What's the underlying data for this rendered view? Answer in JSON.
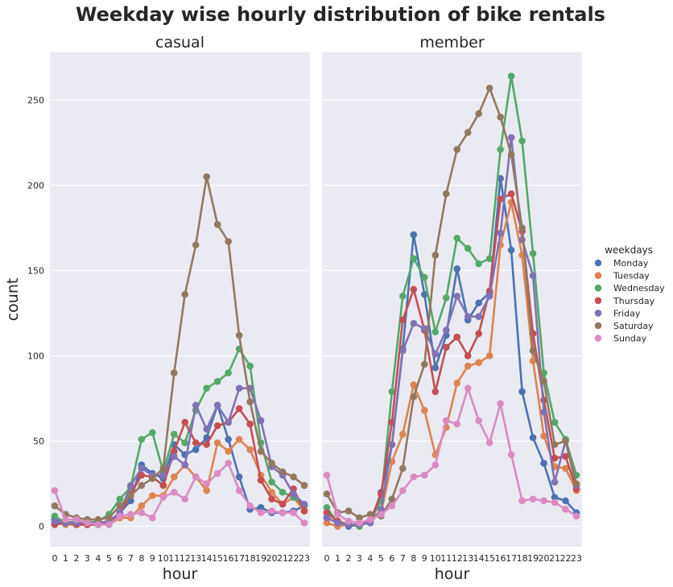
{
  "figure": {
    "title": "Weekday wise hourly distribution of bike rentals",
    "legend_title": "weekdays",
    "legend_position": "right",
    "ylabel": "count",
    "grid": true,
    "background": "#eaeaf2"
  },
  "chart_data": [
    {
      "type": "line",
      "title": "casual",
      "xlabel": "hour",
      "ylabel": "count",
      "x": [
        0,
        1,
        2,
        3,
        4,
        5,
        6,
        7,
        8,
        9,
        10,
        11,
        12,
        13,
        14,
        15,
        16,
        17,
        18,
        19,
        20,
        21,
        22,
        23
      ],
      "ylim": [
        -12,
        278
      ],
      "yticks": [
        0,
        50,
        100,
        150,
        200,
        250
      ],
      "series": [
        {
          "name": "Monday",
          "color": "#4c72b0",
          "values": [
            4,
            2,
            2,
            1,
            1,
            2,
            8,
            15,
            36,
            31,
            28,
            48,
            42,
            45,
            52,
            71,
            51,
            29,
            10,
            11,
            8,
            8,
            9,
            12
          ]
        },
        {
          "name": "Tuesday",
          "color": "#dd8452",
          "values": [
            2,
            1,
            1,
            1,
            1,
            1,
            5,
            5,
            12,
            18,
            18,
            29,
            36,
            29,
            21,
            49,
            44,
            51,
            45,
            30,
            20,
            13,
            17,
            9
          ]
        },
        {
          "name": "Wednesday",
          "color": "#55a868",
          "values": [
            6,
            2,
            3,
            2,
            3,
            7,
            16,
            23,
            51,
            55,
            32,
            54,
            49,
            68,
            81,
            85,
            90,
            104,
            94,
            49,
            26,
            20,
            17,
            12
          ]
        },
        {
          "name": "Thursday",
          "color": "#c44e52",
          "values": [
            1,
            2,
            1,
            1,
            1,
            2,
            7,
            19,
            30,
            29,
            24,
            44,
            61,
            49,
            48,
            59,
            61,
            69,
            60,
            27,
            16,
            13,
            22,
            9
          ]
        },
        {
          "name": "Friday",
          "color": "#8172b3",
          "values": [
            3,
            2,
            2,
            2,
            2,
            3,
            8,
            24,
            34,
            30,
            30,
            41,
            36,
            71,
            57,
            71,
            61,
            81,
            81,
            62,
            35,
            30,
            19,
            13
          ]
        },
        {
          "name": "Saturday",
          "color": "#937860",
          "values": [
            12,
            7,
            5,
            4,
            4,
            5,
            12,
            18,
            24,
            28,
            34,
            90,
            136,
            165,
            205,
            177,
            167,
            112,
            73,
            44,
            37,
            32,
            29,
            24
          ]
        },
        {
          "name": "Sunday",
          "color": "#da8bc3",
          "values": [
            21,
            4,
            4,
            2,
            1,
            1,
            6,
            7,
            8,
            5,
            17,
            20,
            16,
            29,
            25,
            31,
            37,
            21,
            12,
            8,
            9,
            8,
            8,
            2
          ]
        }
      ]
    },
    {
      "type": "line",
      "title": "member",
      "xlabel": "hour",
      "ylabel": "",
      "x": [
        0,
        1,
        2,
        3,
        4,
        5,
        6,
        7,
        8,
        9,
        10,
        11,
        12,
        13,
        14,
        15,
        16,
        17,
        18,
        19,
        20,
        21,
        22,
        23
      ],
      "ylim": [
        -12,
        278
      ],
      "yticks": [
        0,
        50,
        100,
        150,
        200,
        250
      ],
      "series": [
        {
          "name": "Monday",
          "color": "#4c72b0",
          "values": [
            5,
            2,
            0,
            1,
            2,
            20,
            48,
            104,
            171,
            136,
            93,
            112,
            151,
            121,
            131,
            137,
            204,
            162,
            79,
            52,
            37,
            17,
            15,
            8
          ]
        },
        {
          "name": "Tuesday",
          "color": "#dd8452",
          "values": [
            2,
            0,
            1,
            1,
            3,
            8,
            38,
            54,
            83,
            68,
            42,
            58,
            84,
            94,
            96,
            100,
            165,
            190,
            159,
            97,
            53,
            35,
            34,
            21
          ]
        },
        {
          "name": "Wednesday",
          "color": "#55a868",
          "values": [
            11,
            2,
            1,
            0,
            3,
            15,
            79,
            135,
            157,
            146,
            114,
            134,
            169,
            163,
            154,
            157,
            221,
            264,
            226,
            160,
            90,
            61,
            51,
            30
          ]
        },
        {
          "name": "Thursday",
          "color": "#c44e52",
          "values": [
            8,
            3,
            1,
            1,
            3,
            19,
            61,
            121,
            139,
            115,
            79,
            105,
            111,
            100,
            113,
            138,
            192,
            195,
            173,
            113,
            74,
            40,
            41,
            22
          ]
        },
        {
          "name": "Friday",
          "color": "#8172b3",
          "values": [
            5,
            2,
            1,
            1,
            2,
            10,
            48,
            103,
            119,
            116,
            101,
            115,
            135,
            123,
            123,
            135,
            172,
            228,
            168,
            147,
            67,
            26,
            50,
            24
          ]
        },
        {
          "name": "Saturday",
          "color": "#937860",
          "values": [
            19,
            8,
            9,
            5,
            7,
            6,
            16,
            34,
            76,
            95,
            159,
            195,
            221,
            231,
            242,
            257,
            240,
            218,
            175,
            103,
            85,
            48,
            50,
            25
          ]
        },
        {
          "name": "Sunday",
          "color": "#da8bc3",
          "values": [
            30,
            7,
            3,
            2,
            4,
            7,
            12,
            21,
            29,
            30,
            36,
            62,
            60,
            81,
            62,
            49,
            72,
            42,
            15,
            16,
            15,
            14,
            10,
            6
          ]
        }
      ]
    }
  ]
}
